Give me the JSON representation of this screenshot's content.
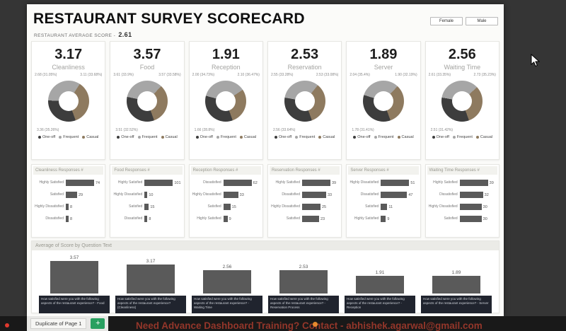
{
  "colors": {
    "series_list": [
      "#3d3d3d",
      "#a6a6a6",
      "#8e7a5f"
    ],
    "bar": "#5a5a5a",
    "accent_green": "#28a060",
    "marquee_red": "#93362a"
  },
  "header": {
    "title": "RESTAURANT SURVEY SCORECARD",
    "avg_label": "RESTAURANT AVERAGE SCORE -",
    "avg_value": "2.61"
  },
  "filters": [
    {
      "label": "Female"
    },
    {
      "label": "Male"
    }
  ],
  "legend": [
    {
      "label": "One-off",
      "color": "#3d3d3d"
    },
    {
      "label": "Frequent",
      "color": "#a6a6a6"
    },
    {
      "label": "Casual",
      "color": "#8e7a5f"
    }
  ],
  "kpis": [
    {
      "score": "3.17",
      "label": "Cleanliness",
      "donut": {
        "left": "2.68 (31.05%)",
        "right": "3.11 (33.68%)",
        "bottom": "3.36 (35.26%)",
        "percents": [
          31.05,
          33.68,
          35.26
        ]
      }
    },
    {
      "score": "3.57",
      "label": "Food",
      "donut": {
        "left": "3.61 (33.9%)",
        "right": "3.57 (33.58%)",
        "bottom": "3.51 (32.52%)",
        "percents": [
          33.9,
          33.58,
          32.52
        ]
      }
    },
    {
      "score": "1.91",
      "label": "Reception",
      "donut": {
        "left": "2.00 (34.73%)",
        "right": "2.10 (36.47%)",
        "bottom": "1.66 (28.8%)",
        "percents": [
          34.73,
          36.47,
          28.8
        ]
      }
    },
    {
      "score": "2.53",
      "label": "Reservation",
      "donut": {
        "left": "2.55 (33.28%)",
        "right": "2.53 (33.08%)",
        "bottom": "2.56 (33.64%)",
        "percents": [
          33.28,
          33.08,
          33.64
        ]
      }
    },
    {
      "score": "1.89",
      "label": "Server",
      "donut": {
        "left": "2.04 (35.4%)",
        "right": "1.90 (32.19%)",
        "bottom": "1.78 (31.41%)",
        "percents": [
          35.4,
          32.19,
          31.41
        ]
      }
    },
    {
      "score": "2.56",
      "label": "Waiting Time",
      "donut": {
        "left": "2.61 (33.35%)",
        "right": "2.73 (35.23%)",
        "bottom": "2.51 (31.42%)",
        "percents": [
          33.35,
          35.23,
          31.42
        ]
      }
    }
  ],
  "response_charts": [
    {
      "title": "Cleanliness Responses #",
      "rows": [
        {
          "label": "Highly Satisfied",
          "value": 74
        },
        {
          "label": "Satisfied",
          "value": 29
        },
        {
          "label": "Highly Dissatisfied",
          "value": 8
        },
        {
          "label": "Dissatisfied",
          "value": 8
        }
      ]
    },
    {
      "title": "Food Responses #",
      "rows": [
        {
          "label": "Highly Satisfied",
          "value": 101
        },
        {
          "label": "Highly Dissatisfied",
          "value": 10
        },
        {
          "label": "Satisfied",
          "value": 15
        },
        {
          "label": "Dissatisfied",
          "value": 8
        }
      ]
    },
    {
      "title": "Reception Responses #",
      "rows": [
        {
          "label": "Dissatisfied",
          "value": 62
        },
        {
          "label": "Highly Dissatisfied",
          "value": 33
        },
        {
          "label": "Satisfied",
          "value": 15
        },
        {
          "label": "Highly Satisfied",
          "value": 9
        }
      ]
    },
    {
      "title": "Reservation Responses #",
      "rows": [
        {
          "label": "Highly Satisfied",
          "value": 39
        },
        {
          "label": "Dissatisfied",
          "value": 33
        },
        {
          "label": "Highly Dissatisfied",
          "value": 25
        },
        {
          "label": "Satisfied",
          "value": 23
        }
      ]
    },
    {
      "title": "Server Responses #",
      "rows": [
        {
          "label": "Highly Dissatisfied",
          "value": 51
        },
        {
          "label": "Dissatisfied",
          "value": 47
        },
        {
          "label": "Satisfied",
          "value": 11
        },
        {
          "label": "Highly Satisfied",
          "value": 9
        }
      ]
    },
    {
      "title": "Waiting Time Responses #",
      "rows": [
        {
          "label": "Highly Satisfied",
          "value": 39
        },
        {
          "label": "Dissatisfied",
          "value": 32
        },
        {
          "label": "Highly Dissatisfied",
          "value": 30
        },
        {
          "label": "Satisfied",
          "value": 30
        }
      ]
    }
  ],
  "bottom_chart": {
    "title": "Average of Score by Question Text",
    "type": "bar",
    "ymax": 4,
    "bars": [
      {
        "value": 3.57,
        "label": "How satisfied were you with the following aspects of the restaurant experience? - Food"
      },
      {
        "value": 3.17,
        "label": "How satisfied were you with the following aspects of the restaurant experience? (Cleanliness)"
      },
      {
        "value": 2.56,
        "label": "How satisfied were you with the following aspects of the restaurant experience? - Waiting Time"
      },
      {
        "value": 2.53,
        "label": "How satisfied were you with the following aspects of the restaurant experience? - Reservation Process"
      },
      {
        "value": 1.91,
        "label": "How satisfied were you with the following aspects of the restaurant experience? - Reception"
      },
      {
        "value": 1.89,
        "label": "How satisfied were you with the following aspects of the restaurant experience? - Server"
      }
    ]
  },
  "taskbar": {
    "tab": "Duplicate of Page 1",
    "add_button": "+",
    "marquee": "Need Advance Dashboard Training? Contact - abhishek.agarwal@gmail.com"
  }
}
